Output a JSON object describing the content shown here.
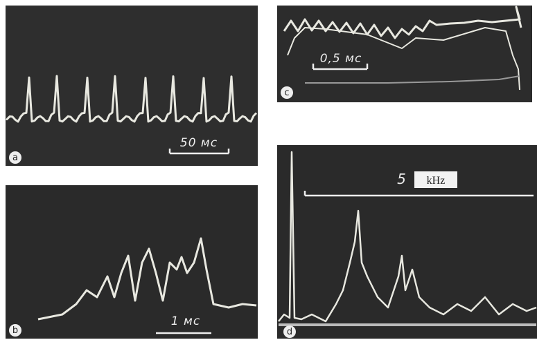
{
  "panels": [
    {
      "label": "a",
      "scale": "50 мс"
    },
    {
      "label": "b",
      "scale": "1 мс"
    },
    {
      "label": "c",
      "scale": "0,5 мс"
    },
    {
      "label": "d",
      "scale": "5",
      "unit": "kHz"
    }
  ]
}
